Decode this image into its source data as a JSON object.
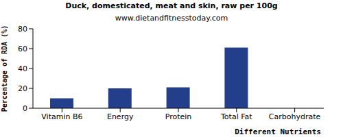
{
  "chart_data": {
    "type": "bar",
    "title": "Duck, domesticated, meat and skin, raw per 100g",
    "subtitle": "www.dietandfitnesstoday.com",
    "x_label": "Different Nutrients",
    "y_label": "Percentage of RDA (%)",
    "categories": [
      "Vitamin B6",
      "Energy",
      "Protein",
      "Total Fat",
      "Carbohydrate"
    ],
    "values": [
      10,
      20,
      21,
      61,
      0
    ],
    "color": "#233f8c",
    "ylim": [
      0,
      80
    ],
    "yticks": [
      0,
      20,
      40,
      60,
      80
    ],
    "grid": false
  }
}
